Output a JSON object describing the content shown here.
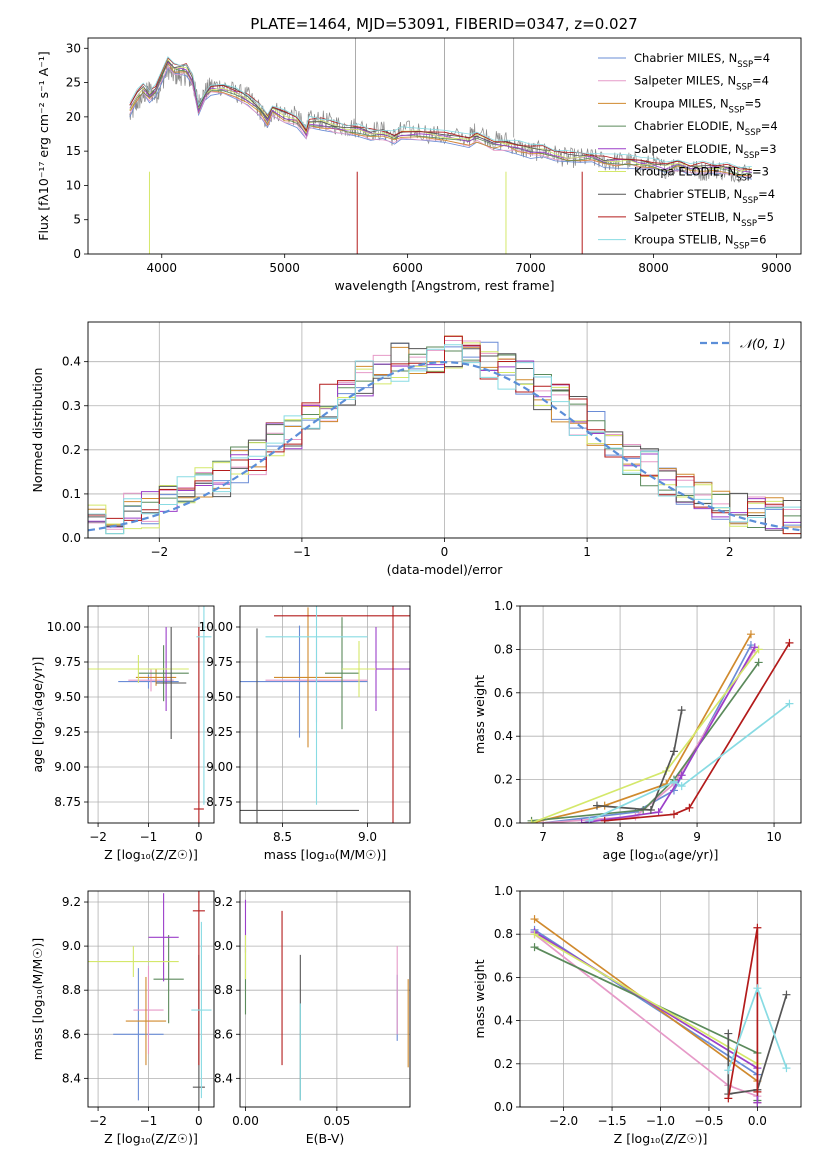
{
  "figure_title": "PLATE=1464, MJD=53091, FIBERID=0347, z=0.027",
  "model_colors": [
    "#6a8cd6",
    "#e69ac8",
    "#d08a2e",
    "#5b8a5b",
    "#9b3fc9",
    "#d4e86a",
    "#555555",
    "#b31b1b",
    "#88dbe3"
  ],
  "chart_data": [
    {
      "id": "spectrum",
      "type": "line",
      "title": "PLATE=1464, MJD=53091, FIBERID=0347, z=0.027",
      "xlabel": "wavelength [Angstrom, rest frame]",
      "ylabel": "Flux [fλ10⁻¹⁷ erg cm⁻² s⁻¹ A⁻¹]",
      "xlim": [
        3400,
        9200
      ],
      "ylim": [
        0,
        31.5
      ],
      "xticks": [
        4000,
        5000,
        6000,
        7000,
        8000,
        9000
      ],
      "yticks": [
        0,
        5,
        10,
        15,
        20,
        25,
        30
      ],
      "legend_loc": "upper-right",
      "data_color": "#888888",
      "data": {
        "x": [
          3740,
          3800,
          3850,
          3900,
          3950,
          4000,
          4050,
          4100,
          4150,
          4200,
          4250,
          4300,
          4350,
          4400,
          4500,
          4600,
          4700,
          4800,
          4861,
          4900,
          5000,
          5100,
          5175,
          5200,
          5300,
          5400,
          5500,
          5600,
          5700,
          5800,
          5893,
          5950,
          6100,
          6300,
          6500,
          6563,
          6700,
          6800,
          6900,
          7000,
          7100,
          7200,
          7300,
          7400,
          7500,
          7600,
          7700,
          7800,
          7900,
          8000,
          8100,
          8200,
          8300,
          8400,
          8500,
          8600,
          8700,
          8800
        ],
        "y": [
          20,
          22,
          23,
          24,
          23,
          25,
          27,
          26,
          26,
          26,
          25,
          22,
          23.5,
          24.5,
          24.5,
          23.5,
          23,
          21,
          19,
          21,
          20.5,
          20,
          18,
          19.5,
          19.5,
          19,
          18.5,
          18.5,
          18,
          18,
          17,
          18,
          18,
          17,
          17,
          18,
          16.5,
          16.5,
          15.5,
          15,
          15,
          14.5,
          14,
          14,
          14,
          13.5,
          13.5,
          13.5,
          13,
          13,
          12.5,
          13,
          12.5,
          12,
          12.5,
          12,
          12,
          12
        ]
      },
      "series": [
        {
          "name": "Chabrier MILES, N_SSP=4",
          "legend_prefix": "Chabrier MILES, N",
          "legend_suffix": "=4"
        },
        {
          "name": "Salpeter MILES, N_SSP=4",
          "legend_prefix": "Salpeter MILES, N",
          "legend_suffix": "=4"
        },
        {
          "name": "Kroupa MILES, N_SSP=5",
          "legend_prefix": "Kroupa MILES, N",
          "legend_suffix": "=5"
        },
        {
          "name": "Chabrier ELODIE, N_SSP=4",
          "legend_prefix": "Chabrier ELODIE, N",
          "legend_suffix": "=4"
        },
        {
          "name": "Salpeter ELODIE, N_SSP=3",
          "legend_prefix": "Salpeter ELODIE, N",
          "legend_suffix": "=3"
        },
        {
          "name": "Kroupa ELODIE, N_SSP=3",
          "legend_prefix": "Kroupa ELODIE, N",
          "legend_suffix": "=3"
        },
        {
          "name": "Chabrier STELIB, N_SSP=4",
          "legend_prefix": "Chabrier STELIB, N",
          "legend_suffix": "=4"
        },
        {
          "name": "Salpeter STELIB, N_SSP=5",
          "legend_prefix": "Salpeter STELIB, N",
          "legend_suffix": "=5"
        },
        {
          "name": "Kroupa STELIB, N_SSP=6",
          "legend_prefix": "Kroupa STELIB, N",
          "legend_suffix": "=6"
        }
      ],
      "model": {
        "x": [
          3740,
          3800,
          3850,
          3900,
          3950,
          4000,
          4050,
          4100,
          4150,
          4200,
          4250,
          4300,
          4350,
          4400,
          4500,
          4600,
          4700,
          4800,
          4861,
          4900,
          5000,
          5100,
          5175,
          5200,
          5300,
          5400,
          5500,
          5600,
          5700,
          5800,
          5893,
          5950,
          6100,
          6300,
          6500,
          6563,
          6700,
          6800,
          6900,
          7000,
          7100,
          7200,
          7300,
          7400,
          7500,
          7600,
          7700,
          7800,
          7900,
          8000,
          8100,
          8200,
          8300,
          8400,
          8500,
          8600,
          8700,
          8800
        ],
        "y": [
          21,
          23,
          24,
          23,
          24,
          26,
          28,
          27,
          27,
          27,
          25.5,
          21,
          23,
          24,
          24,
          23.5,
          22.5,
          21,
          19.5,
          21,
          20,
          19.5,
          17.5,
          19,
          19,
          18.5,
          18,
          18,
          17.5,
          17.5,
          17,
          17.5,
          17.5,
          17,
          16.5,
          17,
          16,
          16,
          15.5,
          15,
          15,
          14.5,
          14,
          14,
          14,
          13.5,
          13.5,
          13.5,
          13,
          13,
          12.5,
          13,
          12.5,
          12.5,
          12.5,
          12.5,
          12,
          12
        ]
      }
    },
    {
      "id": "residuals",
      "type": "histogram",
      "xlabel": "(data-model)/error",
      "ylabel": "Normed distribution",
      "xlim": [
        -2.5,
        2.5
      ],
      "ylim": [
        0,
        0.49
      ],
      "xticks": [
        -2,
        -1,
        0,
        1,
        2
      ],
      "yticks": [
        0.0,
        0.1,
        0.2,
        0.3,
        0.4
      ],
      "grid": true,
      "legend_loc": "upper-right",
      "reference": {
        "name": "𝒩(0, 1)",
        "mean": 0,
        "sigma": 1,
        "color": "#5b8ed8"
      },
      "bin_edges_range": [
        -2.5,
        2.5
      ],
      "bins": 40
    },
    {
      "id": "age-vs-Z",
      "type": "errorbar",
      "xlabel": "Z [log₁₀(Z/Z☉)]",
      "ylabel": "age  [log₁₀(age/yr)]",
      "xlim": [
        -2.2,
        0.3
      ],
      "ylim": [
        8.6,
        10.15
      ],
      "xticks": [
        -2,
        -1,
        0
      ],
      "yticks": [
        8.75,
        9.0,
        9.25,
        9.5,
        9.75,
        10.0
      ],
      "points": [
        {
          "x": -1.0,
          "y": 9.61,
          "xerr": 0.6,
          "yerr": 0.05
        },
        {
          "x": -0.95,
          "y": 9.62,
          "xerr": 0.45,
          "yerr": 0.08
        },
        {
          "x": -0.85,
          "y": 9.64,
          "xerr": 0.4,
          "yerr": 0.06
        },
        {
          "x": -0.7,
          "y": 9.67,
          "xerr": 0.5,
          "yerr": 0.2
        },
        {
          "x": -0.65,
          "y": 9.7,
          "xerr": 0.35,
          "yerr": 0.3
        },
        {
          "x": -1.2,
          "y": 9.7,
          "xerr": 1.0,
          "yerr": 0.1
        },
        {
          "x": -0.55,
          "y": 9.6,
          "xerr": 0.3,
          "yerr": 0.4
        },
        {
          "x": 0.0,
          "y": 8.7,
          "xerr": 0.1,
          "yerr": 1.3
        },
        {
          "x": 0.1,
          "y": 9.93,
          "xerr": 0.15,
          "yerr": 1.2
        }
      ]
    },
    {
      "id": "age-vs-mass",
      "type": "errorbar",
      "xlabel": "mass [log₁₀(M/M☉)]",
      "ylabel": "",
      "xlim": [
        8.25,
        9.25
      ],
      "ylim": [
        8.6,
        10.15
      ],
      "xticks": [
        8.5,
        9.0
      ],
      "yticks": [
        8.75,
        9.0,
        9.25,
        9.5,
        9.75,
        10.0
      ],
      "points": [
        {
          "x": 8.6,
          "y": 9.61,
          "xerr": 0.4,
          "yerr": 0.4
        },
        {
          "x": 8.7,
          "y": 9.62,
          "xerr": 0.3,
          "yerr": 0.3
        },
        {
          "x": 8.65,
          "y": 9.64,
          "xerr": 0.2,
          "yerr": 0.5
        },
        {
          "x": 8.85,
          "y": 9.67,
          "xerr": 0.1,
          "yerr": 0.4
        },
        {
          "x": 9.05,
          "y": 9.7,
          "xerr": 0.2,
          "yerr": 0.3
        },
        {
          "x": 8.95,
          "y": 9.7,
          "xerr": 0.1,
          "yerr": 0.2
        },
        {
          "x": 8.35,
          "y": 8.69,
          "xerr": 0.6,
          "yerr": 1.3
        },
        {
          "x": 9.15,
          "y": 10.08,
          "xerr": 0.7,
          "yerr": 1.5
        },
        {
          "x": 8.7,
          "y": 9.93,
          "xerr": 0.3,
          "yerr": 1.2
        }
      ]
    },
    {
      "id": "mass-weight-vs-age",
      "type": "line",
      "xlabel": "age  [log₁₀(age/yr)]",
      "ylabel": "mass weight",
      "xlim": [
        6.7,
        10.35
      ],
      "ylim": [
        0,
        1.0
      ],
      "xticks": [
        7,
        8,
        9,
        10
      ],
      "yticks": [
        0.0,
        0.2,
        0.4,
        0.6,
        0.8,
        1.0
      ],
      "grid": true,
      "series": [
        {
          "x": [
            7.0,
            8.2,
            8.7,
            9.7
          ],
          "y": [
            0.0,
            0.05,
            0.15,
            0.82
          ]
        },
        {
          "x": [
            7.0,
            8.2,
            8.7,
            9.75
          ],
          "y": [
            0.0,
            0.03,
            0.18,
            0.8
          ]
        },
        {
          "x": [
            6.85,
            7.8,
            8.6,
            9.7
          ],
          "y": [
            0.0,
            0.08,
            0.18,
            0.87
          ]
        },
        {
          "x": [
            6.85,
            8.3,
            8.7,
            9.8
          ],
          "y": [
            0.01,
            0.06,
            0.2,
            0.74
          ]
        },
        {
          "x": [
            7.5,
            8.5,
            8.8,
            9.75
          ],
          "y": [
            0.0,
            0.05,
            0.22,
            0.81
          ]
        },
        {
          "x": [
            6.85,
            8.6,
            9.8
          ],
          "y": [
            0.0,
            0.24,
            0.8
          ]
        },
        {
          "x": [
            7.7,
            8.4,
            8.7,
            8.8
          ],
          "y": [
            0.08,
            0.06,
            0.33,
            0.52
          ]
        },
        {
          "x": [
            7.8,
            8.7,
            8.9,
            10.2
          ],
          "y": [
            0.01,
            0.04,
            0.07,
            0.83
          ]
        },
        {
          "x": [
            7.6,
            8.7,
            8.8,
            10.2
          ],
          "y": [
            0.01,
            0.19,
            0.17,
            0.55
          ]
        }
      ]
    },
    {
      "id": "mass-vs-Z",
      "type": "errorbar",
      "xlabel": "Z [log₁₀(Z/Z☉)]",
      "ylabel": "mass [log₁₀(M/M☉)]",
      "xlim": [
        -2.2,
        0.3
      ],
      "ylim": [
        8.27,
        9.25
      ],
      "xticks": [
        -2,
        -1,
        0
      ],
      "yticks": [
        8.4,
        8.6,
        8.8,
        9.0,
        9.2
      ],
      "points": [
        {
          "x": -1.2,
          "y": 8.6,
          "xerr": 0.5,
          "yerr": 0.3
        },
        {
          "x": -1.0,
          "y": 8.71,
          "xerr": 0.3,
          "yerr": 0.2
        },
        {
          "x": -1.05,
          "y": 8.66,
          "xerr": 0.4,
          "yerr": 0.2
        },
        {
          "x": -0.6,
          "y": 8.85,
          "xerr": 0.3,
          "yerr": 0.2
        },
        {
          "x": -0.7,
          "y": 9.04,
          "xerr": 0.3,
          "yerr": 0.2
        },
        {
          "x": -1.3,
          "y": 8.93,
          "xerr": 0.9,
          "yerr": 0.07
        },
        {
          "x": 0.0,
          "y": 8.36,
          "xerr": 0.12,
          "yerr": 0.6
        },
        {
          "x": 0.0,
          "y": 9.16,
          "xerr": 0.12,
          "yerr": 0.7
        },
        {
          "x": 0.05,
          "y": 8.71,
          "xerr": 0.2,
          "yerr": 0.4
        }
      ]
    },
    {
      "id": "mass-vs-ebv",
      "type": "errorbar",
      "xlabel": "E(B-V)",
      "ylabel": "",
      "xlim": [
        -0.003,
        0.09
      ],
      "ylim": [
        8.27,
        9.25
      ],
      "xticks": [
        0.0,
        0.05
      ],
      "yticks": [
        8.4,
        8.6,
        8.8,
        9.0,
        9.2
      ],
      "points": [
        {
          "x": 0.083,
          "y": 8.72,
          "xerr": 0.0,
          "yerr": 0.15
        },
        {
          "x": 0.083,
          "y": 8.8,
          "xerr": 0.0,
          "yerr": 0.2
        },
        {
          "x": 0.089,
          "y": 8.65,
          "xerr": 0.0,
          "yerr": 0.2
        },
        {
          "x": 0.0,
          "y": 8.84,
          "xerr": 0.0,
          "yerr": 0.15
        },
        {
          "x": 0.0,
          "y": 9.09,
          "xerr": 0.0,
          "yerr": 0.12
        },
        {
          "x": 0.0,
          "y": 8.95,
          "xerr": 0.0,
          "yerr": 0.1
        },
        {
          "x": 0.03,
          "y": 8.63,
          "xerr": 0.0,
          "yerr": 0.33
        },
        {
          "x": 0.02,
          "y": 8.81,
          "xerr": 0.0,
          "yerr": 0.35
        },
        {
          "x": 0.03,
          "y": 8.52,
          "xerr": 0.0,
          "yerr": 0.22
        }
      ]
    },
    {
      "id": "mass-weight-vs-Z",
      "type": "line",
      "xlabel": "Z [log₁₀(Z/Z☉)]",
      "ylabel": "mass weight",
      "xlim": [
        -2.45,
        0.45
      ],
      "ylim": [
        0,
        1.0
      ],
      "xticks": [
        -2.0,
        -1.5,
        -1.0,
        -0.5,
        0.0
      ],
      "yticks": [
        0.0,
        0.2,
        0.4,
        0.6,
        0.8,
        1.0
      ],
      "grid": true,
      "series": [
        {
          "x": [
            -2.3,
            0.0,
            0.0
          ],
          "y": [
            0.82,
            0.15,
            0.02
          ]
        },
        {
          "x": [
            -2.3,
            -0.3,
            0.0
          ],
          "y": [
            0.8,
            0.1,
            0.05
          ]
        },
        {
          "x": [
            -2.3,
            0.0,
            0.0
          ],
          "y": [
            0.87,
            0.12,
            0.02
          ]
        },
        {
          "x": [
            -2.3,
            0.0,
            0.0
          ],
          "y": [
            0.74,
            0.25,
            0.03
          ]
        },
        {
          "x": [
            -2.3,
            0.0,
            0.0
          ],
          "y": [
            0.81,
            0.18,
            0.02
          ]
        },
        {
          "x": [
            -2.3,
            0.0
          ],
          "y": [
            0.8,
            0.2
          ]
        },
        {
          "x": [
            -0.3,
            -0.3,
            0.0,
            0.3
          ],
          "y": [
            0.34,
            0.06,
            0.08,
            0.52
          ]
        },
        {
          "x": [
            -0.3,
            0.0,
            0.0
          ],
          "y": [
            0.04,
            0.83,
            0.07
          ]
        },
        {
          "x": [
            -0.3,
            0.0,
            0.3
          ],
          "y": [
            0.17,
            0.55,
            0.18
          ]
        }
      ]
    }
  ]
}
